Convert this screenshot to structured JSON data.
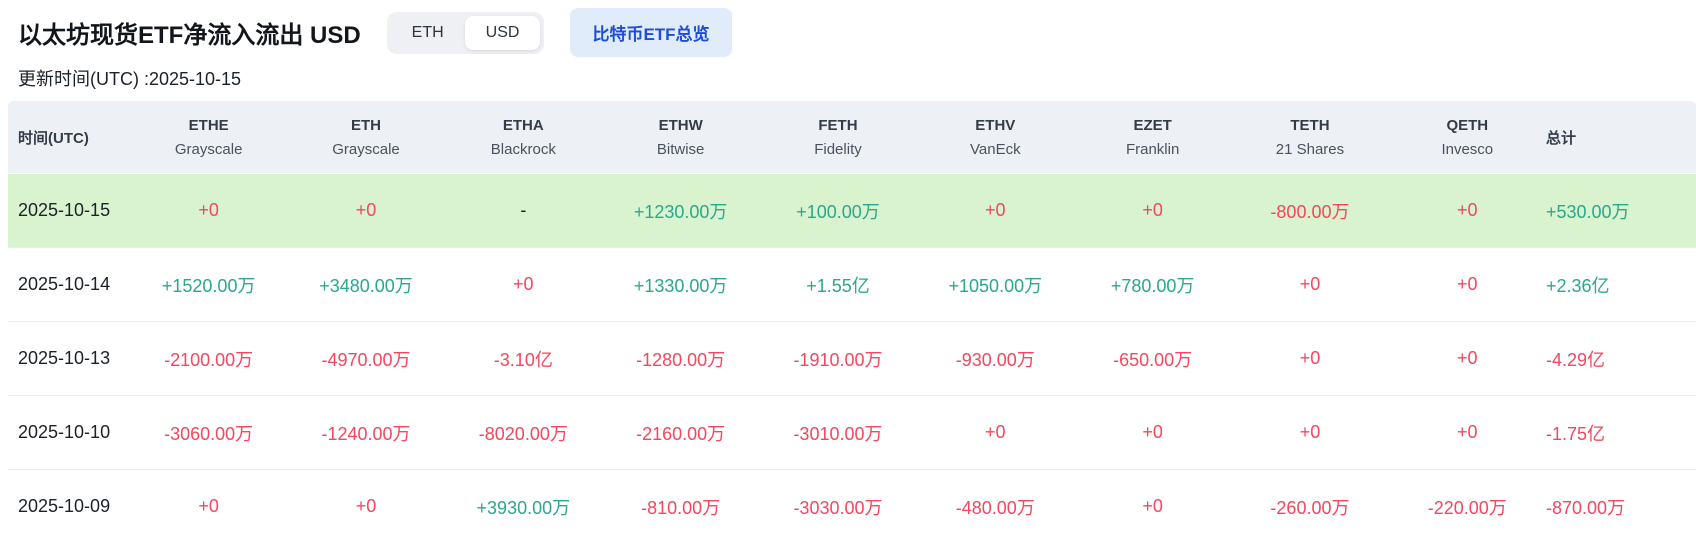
{
  "colors": {
    "up": "#2aa78f",
    "down": "#f5465d",
    "header_bg": "#edf0f5",
    "highlight_row_bg": "#d9f3cf",
    "button_bg": "#e1ecfb",
    "button_text": "#1d4ed8"
  },
  "header": {
    "title": "以太坊现货ETF净流入流出 USD",
    "currency_toggle": {
      "options": [
        "ETH",
        "USD"
      ],
      "selected": "USD"
    },
    "btc_overview_button": "比特币ETF总览",
    "update_time": "更新时间(UTC) :2025-10-15"
  },
  "table": {
    "date_column_header": "时间(UTC)",
    "total_column_header": "总计",
    "funds": [
      {
        "ticker": "ETHE",
        "issuer": "Grayscale"
      },
      {
        "ticker": "ETH",
        "issuer": "Grayscale"
      },
      {
        "ticker": "ETHA",
        "issuer": "Blackrock"
      },
      {
        "ticker": "ETHW",
        "issuer": "Bitwise"
      },
      {
        "ticker": "FETH",
        "issuer": "Fidelity"
      },
      {
        "ticker": "ETHV",
        "issuer": "VanEck"
      },
      {
        "ticker": "EZET",
        "issuer": "Franklin"
      },
      {
        "ticker": "TETH",
        "issuer": "21 Shares"
      },
      {
        "ticker": "QETH",
        "issuer": "Invesco"
      }
    ],
    "rows": [
      {
        "date": "2025-10-15",
        "highlight": true,
        "values": [
          {
            "text": "+0",
            "tone": "down"
          },
          {
            "text": "+0",
            "tone": "down"
          },
          {
            "text": "-",
            "tone": "flat"
          },
          {
            "text": "+1230.00万",
            "tone": "up"
          },
          {
            "text": "+100.00万",
            "tone": "up"
          },
          {
            "text": "+0",
            "tone": "down"
          },
          {
            "text": "+0",
            "tone": "down"
          },
          {
            "text": "-800.00万",
            "tone": "down"
          },
          {
            "text": "+0",
            "tone": "down"
          },
          {
            "text": "+530.00万",
            "tone": "up"
          }
        ]
      },
      {
        "date": "2025-10-14",
        "highlight": false,
        "values": [
          {
            "text": "+1520.00万",
            "tone": "up"
          },
          {
            "text": "+3480.00万",
            "tone": "up"
          },
          {
            "text": "+0",
            "tone": "down"
          },
          {
            "text": "+1330.00万",
            "tone": "up"
          },
          {
            "text": "+1.55亿",
            "tone": "up"
          },
          {
            "text": "+1050.00万",
            "tone": "up"
          },
          {
            "text": "+780.00万",
            "tone": "up"
          },
          {
            "text": "+0",
            "tone": "down"
          },
          {
            "text": "+0",
            "tone": "down"
          },
          {
            "text": "+2.36亿",
            "tone": "up"
          }
        ]
      },
      {
        "date": "2025-10-13",
        "highlight": false,
        "values": [
          {
            "text": "-2100.00万",
            "tone": "down"
          },
          {
            "text": "-4970.00万",
            "tone": "down"
          },
          {
            "text": "-3.10亿",
            "tone": "down"
          },
          {
            "text": "-1280.00万",
            "tone": "down"
          },
          {
            "text": "-1910.00万",
            "tone": "down"
          },
          {
            "text": "-930.00万",
            "tone": "down"
          },
          {
            "text": "-650.00万",
            "tone": "down"
          },
          {
            "text": "+0",
            "tone": "down"
          },
          {
            "text": "+0",
            "tone": "down"
          },
          {
            "text": "-4.29亿",
            "tone": "down"
          }
        ]
      },
      {
        "date": "2025-10-10",
        "highlight": false,
        "values": [
          {
            "text": "-3060.00万",
            "tone": "down"
          },
          {
            "text": "-1240.00万",
            "tone": "down"
          },
          {
            "text": "-8020.00万",
            "tone": "down"
          },
          {
            "text": "-2160.00万",
            "tone": "down"
          },
          {
            "text": "-3010.00万",
            "tone": "down"
          },
          {
            "text": "+0",
            "tone": "down"
          },
          {
            "text": "+0",
            "tone": "down"
          },
          {
            "text": "+0",
            "tone": "down"
          },
          {
            "text": "+0",
            "tone": "down"
          },
          {
            "text": "-1.75亿",
            "tone": "down"
          }
        ]
      },
      {
        "date": "2025-10-09",
        "highlight": false,
        "values": [
          {
            "text": "+0",
            "tone": "down"
          },
          {
            "text": "+0",
            "tone": "down"
          },
          {
            "text": "+3930.00万",
            "tone": "up"
          },
          {
            "text": "-810.00万",
            "tone": "down"
          },
          {
            "text": "-3030.00万",
            "tone": "down"
          },
          {
            "text": "-480.00万",
            "tone": "down"
          },
          {
            "text": "+0",
            "tone": "down"
          },
          {
            "text": "-260.00万",
            "tone": "down"
          },
          {
            "text": "-220.00万",
            "tone": "down"
          },
          {
            "text": "-870.00万",
            "tone": "down"
          }
        ]
      }
    ]
  }
}
